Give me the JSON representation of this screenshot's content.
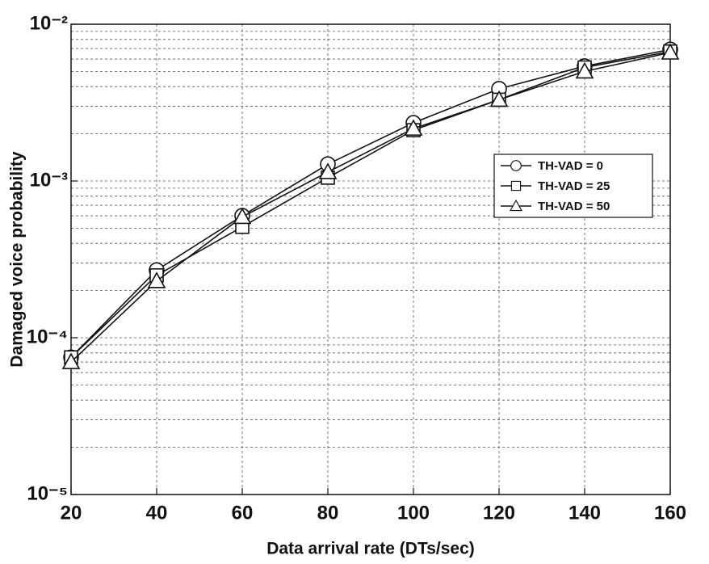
{
  "chart_data": {
    "type": "line",
    "x_label": "Data arrival rate (DTs/sec)",
    "y_label": "Damaged voice probability",
    "x": [
      20,
      40,
      60,
      80,
      100,
      120,
      140,
      160
    ],
    "series": [
      {
        "name": "TH-VAD = 0",
        "color": "#111111",
        "marker": "circle",
        "values": [
          7.5e-05,
          0.00027,
          0.0006,
          0.00128,
          0.00235,
          0.00387,
          0.0054,
          0.0069
        ]
      },
      {
        "name": "TH-VAD = 25",
        "color": "#111111",
        "marker": "square",
        "values": [
          7.5e-05,
          0.00025,
          0.00051,
          0.00105,
          0.00211,
          0.0033,
          0.0053,
          0.0067
        ]
      },
      {
        "name": "TH-VAD = 50",
        "color": "#111111",
        "marker": "triangle",
        "values": [
          7e-05,
          0.00023,
          0.00059,
          0.00114,
          0.00216,
          0.0033,
          0.005,
          0.0066
        ]
      }
    ],
    "xlim": [
      20,
      160
    ],
    "xticks": [
      20,
      40,
      60,
      80,
      100,
      120,
      140,
      160
    ],
    "ylim": [
      1e-05,
      0.01
    ],
    "yticks": [
      {
        "value": 1e-05,
        "label": "10⁻⁵"
      },
      {
        "value": 0.0001,
        "label": "10⁻⁴"
      },
      {
        "value": 0.001,
        "label": "10⁻³"
      },
      {
        "value": 0.01,
        "label": "10⁻²"
      }
    ],
    "y_scale": "log",
    "grid": true,
    "legend": "center right"
  }
}
